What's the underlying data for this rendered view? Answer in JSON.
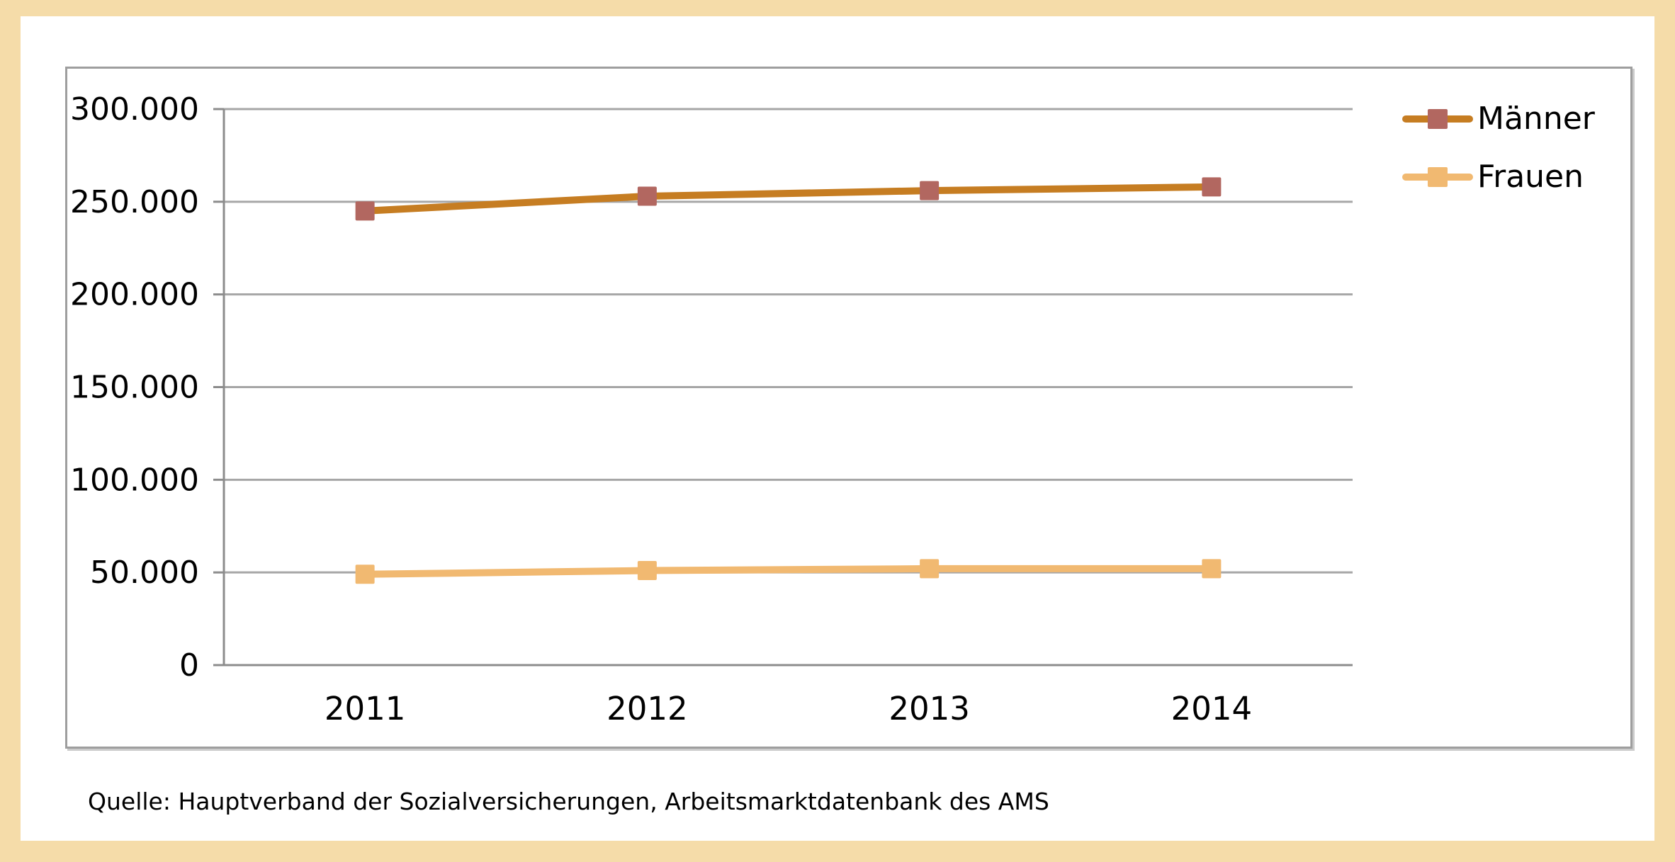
{
  "page": {
    "background_color": "#F5DCA9",
    "panel_color": "#FFFFFF",
    "frame_border_color": "#9E9E9E",
    "gridline_color": "#A6A6A6",
    "axis_color": "#8C8C8C"
  },
  "source_note": "Quelle: Hauptverband der Sozialversicherungen, Arbeitsmarktdatenbank des AMS",
  "chart_data": {
    "type": "line",
    "title": "",
    "xlabel": "",
    "ylabel": "",
    "categories": [
      "2011",
      "2012",
      "2013",
      "2014"
    ],
    "series": [
      {
        "name": "Männer",
        "values": [
          245000,
          253000,
          256000,
          258000
        ],
        "color": "#C67D22",
        "marker_color": "#B26760",
        "marker": "square"
      },
      {
        "name": "Frauen",
        "values": [
          49000,
          51000,
          52000,
          52000
        ],
        "color": "#F1B971",
        "marker_color": "#F1B971",
        "marker": "square"
      }
    ],
    "ylim": [
      0,
      300000
    ],
    "ytick_values": [
      0,
      50000,
      100000,
      150000,
      200000,
      250000,
      300000
    ],
    "ytick_labels": [
      "0",
      "50.000",
      "100.000",
      "150.000",
      "200.000",
      "250.000",
      "300.000"
    ],
    "grid": true,
    "legend_position": "right"
  }
}
